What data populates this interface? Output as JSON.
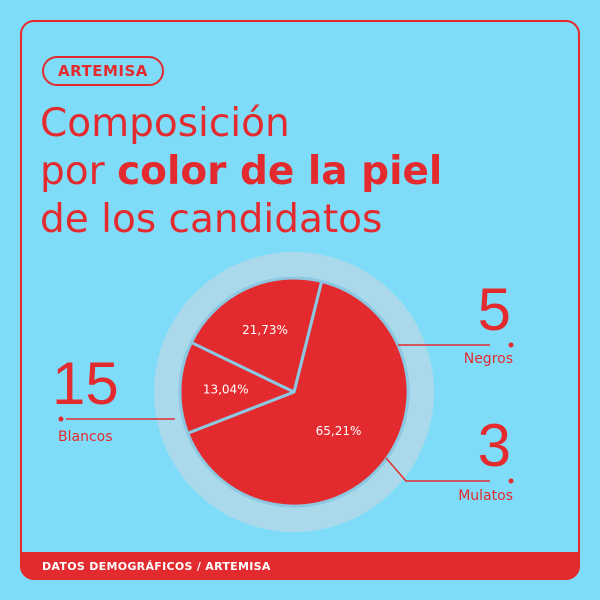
{
  "badge": "ARTEMISA",
  "title": {
    "line1": "Composición",
    "line2_prefix": "por ",
    "line2_bold": "color de la piel",
    "line3": "de los candidatos"
  },
  "footer": "DATOS DEMOGRÁFICOS / ARTEMISA",
  "colors": {
    "background": "#7fdcf8",
    "accent": "#e32b2f",
    "separator": "#8cc8e2",
    "halo": "#a9d9ea"
  },
  "chart_data": {
    "type": "pie",
    "slices": [
      {
        "label": "Blancos",
        "count": "15",
        "value": 65.21,
        "pct_label": "65,21%"
      },
      {
        "label": "Mulatos",
        "count": "3",
        "value": 13.04,
        "pct_label": "13,04%"
      },
      {
        "label": "Negros",
        "count": "5",
        "value": 21.73,
        "pct_label": "21,73%"
      }
    ]
  }
}
